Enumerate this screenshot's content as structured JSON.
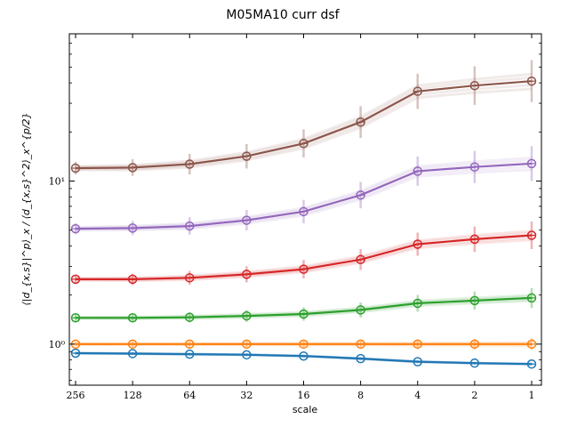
{
  "chart_data": {
    "type": "line",
    "title": "M05MA10 curr dsf",
    "xlabel": "scale",
    "ylabel": "⟨|d_{x,s}|^p⟩_x / ⟨d_{x,s}^2⟩_x^{p/2}",
    "x_scale": "log2-reversed",
    "y_scale": "log",
    "x": [
      256,
      128,
      64,
      32,
      16,
      8,
      4,
      2,
      1
    ],
    "x_tick_labels": [
      "256",
      "128",
      "64",
      "32",
      "16",
      "8",
      "4",
      "2",
      "1"
    ],
    "y_tick_labels": [
      {
        "value": 1,
        "label": "10⁰"
      },
      {
        "value": 10,
        "label": "10¹"
      }
    ],
    "ylim": [
      0.56,
      80
    ],
    "series": [
      {
        "color": "#1f77b4",
        "values": [
          0.88,
          0.875,
          0.868,
          0.86,
          0.845,
          0.815,
          0.78,
          0.765,
          0.755
        ]
      },
      {
        "color": "#ff7f0e",
        "values": [
          1.0,
          1.0,
          1.0,
          1.0,
          1.0,
          1.0,
          1.0,
          1.0,
          1.0
        ]
      },
      {
        "color": "#2ca02c",
        "values": [
          1.45,
          1.45,
          1.46,
          1.49,
          1.53,
          1.62,
          1.78,
          1.85,
          1.92
        ]
      },
      {
        "color": "#d62728",
        "values": [
          2.5,
          2.5,
          2.55,
          2.68,
          2.88,
          3.3,
          4.1,
          4.4,
          4.65
        ]
      },
      {
        "color": "#9467bd",
        "values": [
          5.1,
          5.15,
          5.3,
          5.75,
          6.5,
          8.2,
          11.5,
          12.2,
          12.8
        ]
      },
      {
        "color": "#8c564b",
        "values": [
          12.0,
          12.1,
          12.7,
          14.2,
          17.0,
          23.0,
          35.5,
          38.5,
          41.0
        ]
      }
    ]
  }
}
